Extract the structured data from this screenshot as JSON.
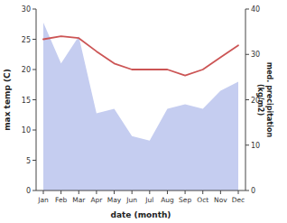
{
  "chart_data": {
    "type": "line",
    "categories": [
      "Jan",
      "Feb",
      "Mar",
      "Apr",
      "May",
      "Jun",
      "Jul",
      "Aug",
      "Sep",
      "Oct",
      "Nov",
      "Dec"
    ],
    "xlabel": "date (month)",
    "ylabel": "max temp (C)",
    "y2label": "med. precipitation\n(kg/m2)",
    "series": [
      {
        "type": "area",
        "axis": "y2",
        "color": "#c5cdf0",
        "values": [
          37.0,
          28.0,
          34.0,
          17.0,
          18.0,
          12.0,
          11.0,
          18.0,
          19.0,
          18.0,
          22.0,
          24.0
        ]
      },
      {
        "type": "line",
        "color": "#cc5555",
        "values": [
          25.0,
          25.5,
          25.2,
          23.0,
          21.0,
          20.0,
          20.0,
          20.0,
          19.0,
          20.0,
          22.0,
          24.0
        ]
      }
    ],
    "ylim": [
      0,
      30
    ],
    "yticks": [
      0,
      5,
      10,
      15,
      20,
      25,
      30
    ],
    "y2lim": [
      0,
      40
    ],
    "y2ticks": [
      0,
      10,
      20,
      30,
      40
    ],
    "grid": false
  }
}
